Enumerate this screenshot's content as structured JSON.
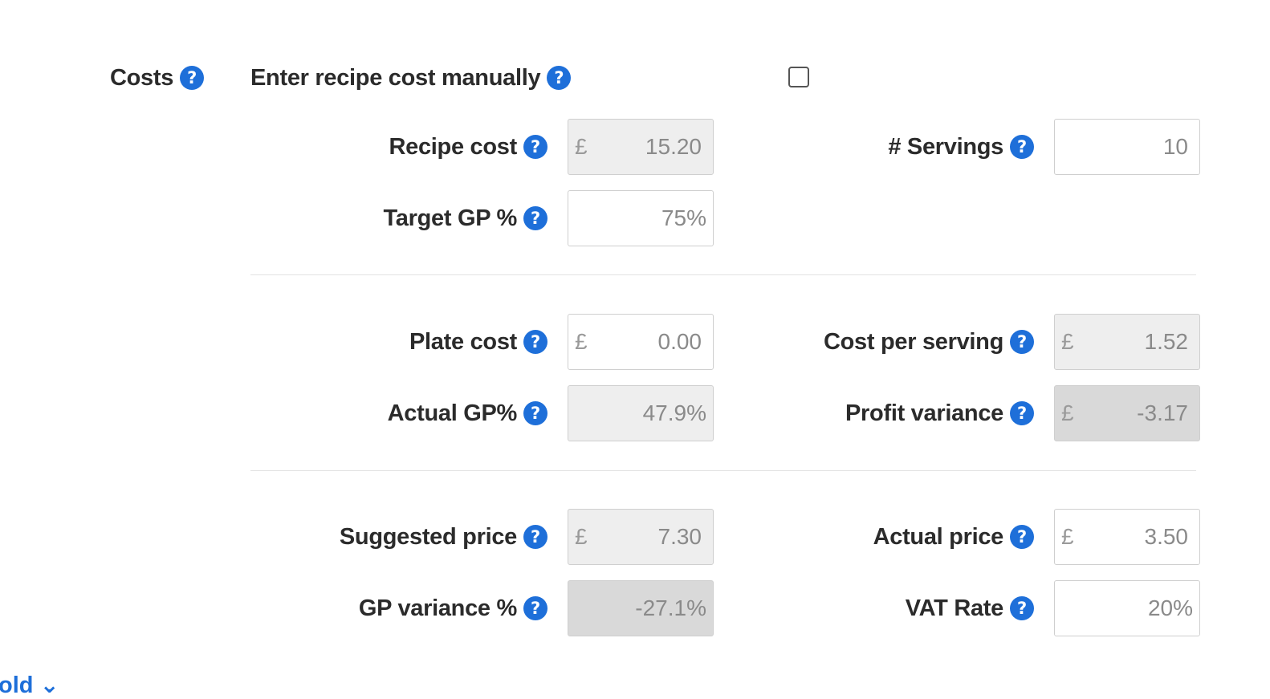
{
  "section": {
    "label": "Costs",
    "manual_label": "Enter recipe cost manually",
    "manual_checked": false
  },
  "fields": {
    "recipe_cost": {
      "label": "Recipe cost",
      "currency": "£",
      "value": "15.20"
    },
    "servings": {
      "label": "# Servings",
      "value": "10"
    },
    "target_gp": {
      "label": "Target GP %",
      "value": "75%"
    },
    "plate_cost": {
      "label": "Plate cost",
      "currency": "£",
      "value": "0.00"
    },
    "cost_per_serving": {
      "label": "Cost per serving",
      "currency": "£",
      "value": "1.52"
    },
    "actual_gp": {
      "label": "Actual GP%",
      "value": "47.9%"
    },
    "profit_variance": {
      "label": "Profit variance",
      "currency": "£",
      "value": "-3.17"
    },
    "suggested_price": {
      "label": "Suggested price",
      "currency": "£",
      "value": "7.30"
    },
    "actual_price": {
      "label": "Actual price",
      "currency": "£",
      "value": "3.50"
    },
    "gp_variance": {
      "label": "GP variance %",
      "value": "-27.1%"
    },
    "vat_rate": {
      "label": "VAT Rate",
      "value": "20%"
    }
  },
  "footer": {
    "fold_text": "old ⌄"
  },
  "icons": {
    "help": "help-question-icon"
  },
  "colors": {
    "accent": "#1e6fd9",
    "readonly_bg": "#eeeeee",
    "variance_bg": "#d9d9d9"
  }
}
